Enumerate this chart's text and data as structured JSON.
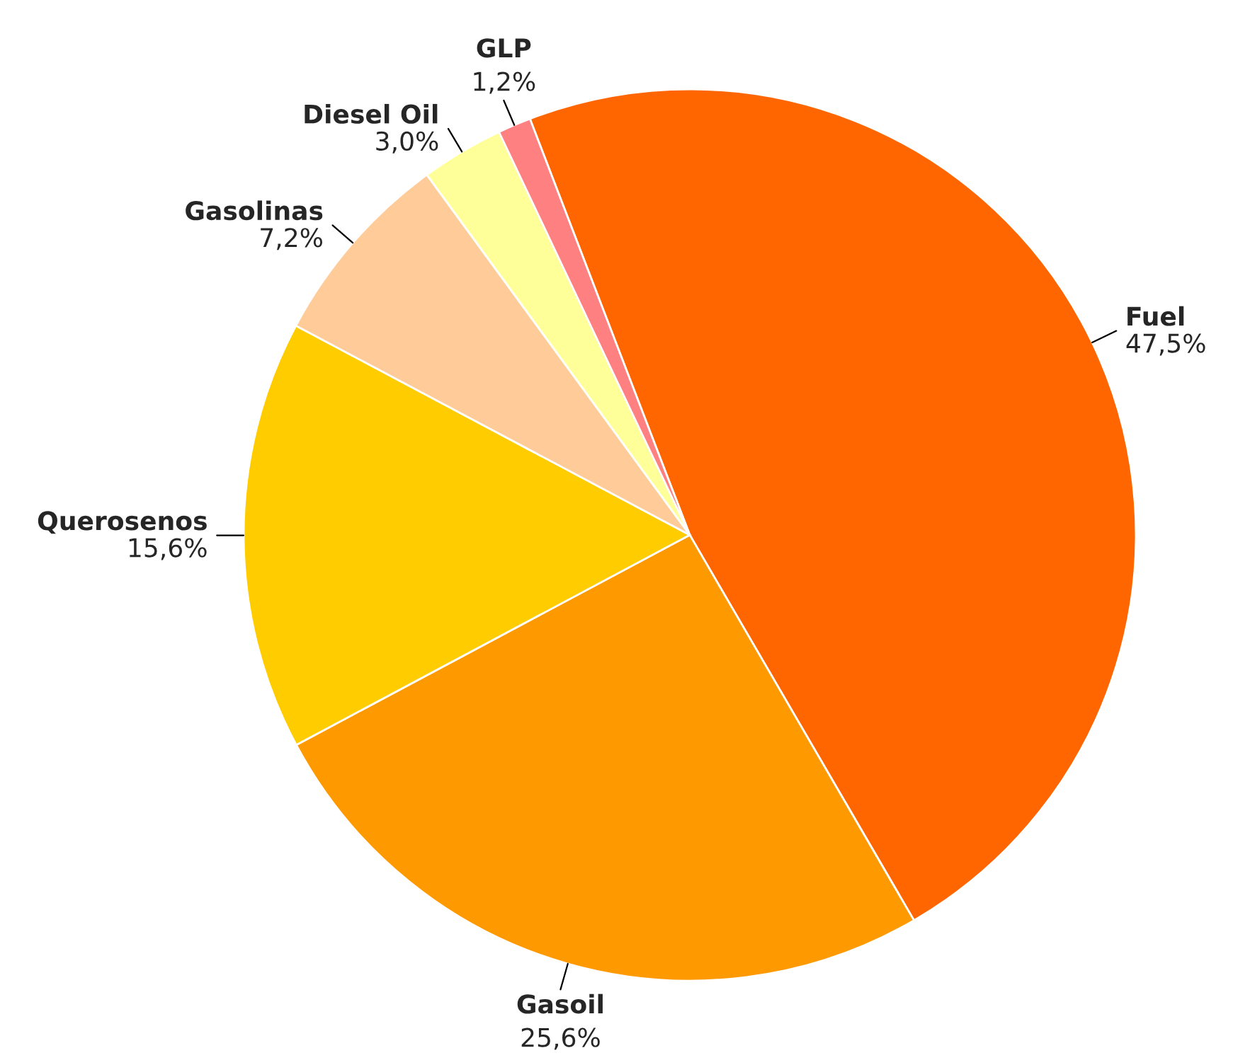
{
  "chart_data": {
    "type": "pie",
    "categories": [
      "Fuel",
      "Gasoil",
      "Querosenos",
      "Gasolinas",
      "Diesel Oil",
      "GLP"
    ],
    "values": [
      47.5,
      25.6,
      15.6,
      7.2,
      3.0,
      1.2
    ],
    "value_labels": [
      "47,5%",
      "25,6%",
      "15,6%",
      "7,2%",
      "3,0%",
      "1,2%"
    ],
    "colors": [
      "#ff6600",
      "#ff9900",
      "#ffcc00",
      "#ffcc99",
      "#ffff99",
      "#ff8080"
    ],
    "legend": false
  }
}
